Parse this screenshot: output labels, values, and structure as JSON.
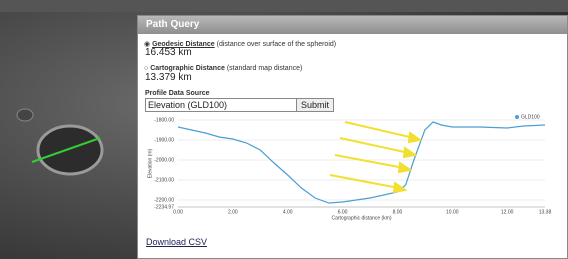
{
  "window": {
    "title": "Path Query",
    "geodesic": {
      "label": "Geodesic Distance",
      "note": "(distance over surface of the spheroid)",
      "value": "16.453 km"
    },
    "cartographic": {
      "label": "Cartographic Distance",
      "note": "(standard map distance)",
      "value": "13.379 km"
    },
    "source": {
      "label": "Profile Data Source",
      "selected": "Elevation (GLD100)",
      "button": "Submit"
    },
    "download": "Download CSV"
  },
  "chart_data": {
    "type": "line",
    "xlabel": "Cartographic distance (km)",
    "ylabel": "Elevation (m)",
    "x": [
      0,
      0.5,
      1,
      1.5,
      2,
      2.5,
      3,
      3.5,
      4,
      4.5,
      5,
      5.5,
      6,
      6.5,
      7,
      7.5,
      8,
      8.3,
      8.6,
      9,
      9.3,
      9.6,
      10,
      11,
      12,
      12.6,
      13.38
    ],
    "series": [
      {
        "name": "GLD100",
        "color": "#4a9fd4",
        "values": [
          -1835,
          -1850,
          -1865,
          -1885,
          -1895,
          -1915,
          -1950,
          -2015,
          -2075,
          -2140,
          -2190,
          -2215,
          -2210,
          -2200,
          -2190,
          -2175,
          -2160,
          -2125,
          -2000,
          -1850,
          -1810,
          -1825,
          -1835,
          -1835,
          -1840,
          -1830,
          -1825
        ]
      }
    ],
    "xlim": [
      0,
      13.38
    ],
    "ylim": [
      -2234.97,
      -1800
    ],
    "xticks": [
      {
        "value": 0,
        "label": "0.00"
      },
      {
        "value": 2,
        "label": "2.00"
      },
      {
        "value": 4,
        "label": "4.00"
      },
      {
        "value": 6,
        "label": "6.00"
      },
      {
        "value": 8,
        "label": "8.00"
      },
      {
        "value": 10,
        "label": "10.00"
      },
      {
        "value": 12,
        "label": "12.00"
      },
      {
        "value": 13.38,
        "label": "13.38"
      }
    ],
    "yticks": [
      {
        "value": -1800,
        "label": "-1800.00"
      },
      {
        "value": -1900,
        "label": "-1900.00"
      },
      {
        "value": -2000,
        "label": "-2000.00"
      },
      {
        "value": -2100,
        "label": "-2100.00"
      },
      {
        "value": -2200,
        "label": "-2200.00"
      },
      {
        "value": -2234.97,
        "label": "-2234.97"
      }
    ],
    "grid": true,
    "legend": "top-right"
  }
}
